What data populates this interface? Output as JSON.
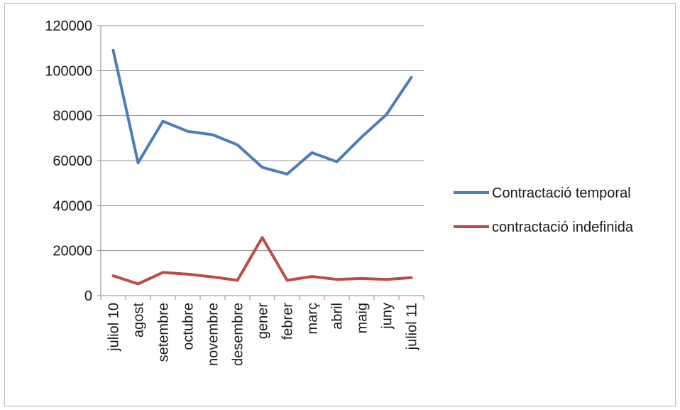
{
  "chart_data": {
    "type": "line",
    "title": "",
    "xlabel": "",
    "ylabel": "",
    "categories": [
      "juliol 10",
      "agost",
      "setembre",
      "octubre",
      "novembre",
      "desembre",
      "gener",
      "febrer",
      "març",
      "abril",
      "maig",
      "juny",
      "juliol 11"
    ],
    "ylim": [
      0,
      120000
    ],
    "yticks": [
      "0",
      "20000",
      "40000",
      "60000",
      "80000",
      "100000",
      "120000"
    ],
    "grid": true,
    "legend_position": "right",
    "series": [
      {
        "name": "Contractació temporal",
        "color": "#4a7ebb",
        "values": [
          109000,
          59000,
          77500,
          73000,
          71500,
          67000,
          57000,
          54000,
          63500,
          59500,
          70500,
          80500,
          97000
        ]
      },
      {
        "name": "contractació indefinida",
        "color": "#be4b48",
        "values": [
          8800,
          5200,
          10300,
          9500,
          8300,
          6800,
          25800,
          6800,
          8500,
          7200,
          7600,
          7200,
          8000
        ]
      }
    ]
  }
}
